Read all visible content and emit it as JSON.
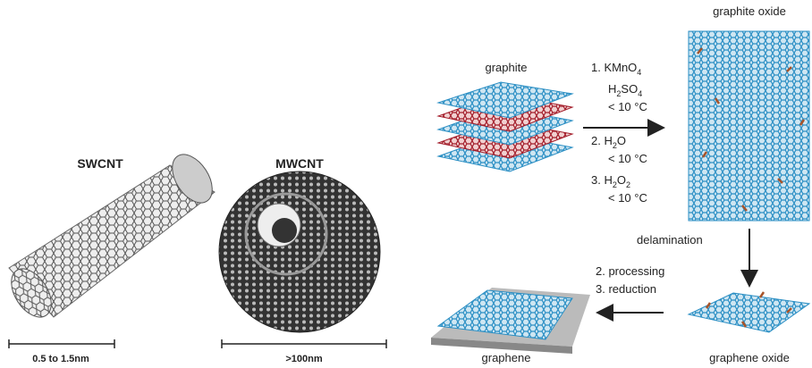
{
  "swcnt": {
    "label": "SWCNT",
    "scale": "0.5 to 1.5nm"
  },
  "mwcnt": {
    "label": "MWCNT",
    "scale": ">100nm"
  },
  "graphite": {
    "label": "graphite"
  },
  "graphite_oxide": {
    "label": "graphite oxide"
  },
  "oxidation_conditions": [
    [
      {
        "text": "1. KMnO"
      },
      {
        "sub": "4"
      }
    ],
    [
      {
        "text": "H"
      },
      {
        "sub": "2"
      },
      {
        "text": "SO"
      },
      {
        "sub": "4"
      }
    ],
    [
      {
        "text": "< 10 °C"
      }
    ],
    [
      {
        "text": "2. H"
      },
      {
        "sub": "2"
      },
      {
        "text": "O"
      }
    ],
    [
      {
        "text": "< 10 °C"
      }
    ],
    [
      {
        "text": "3. H"
      },
      {
        "sub": "2"
      },
      {
        "text": "O"
      },
      {
        "sub": "2"
      }
    ],
    [
      {
        "text": "< 10 °C"
      }
    ]
  ],
  "delamination": {
    "label": "delamination"
  },
  "graphene_oxide": {
    "label": "graphene oxide"
  },
  "reduction_steps": [
    "2. processing",
    "3. reduction"
  ],
  "graphene": {
    "label": "graphene"
  }
}
